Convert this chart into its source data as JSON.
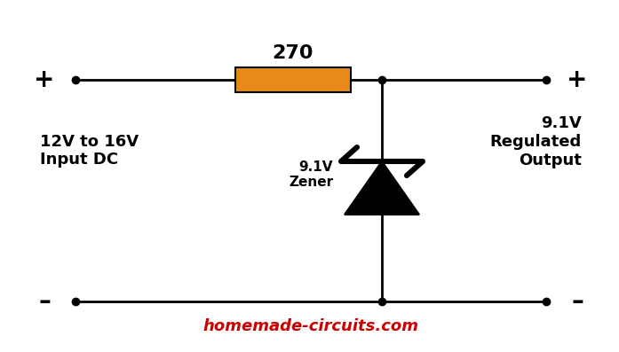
{
  "bg_color": "#ffffff",
  "line_color": "#000000",
  "resistor_color": "#E8891A",
  "resistor_label": "270",
  "resistor_label_fontsize": 16,
  "resistor_label_fontweight": "bold",
  "zener_label": "9.1V\nZener",
  "zener_label_fontsize": 11,
  "input_label": "12V to 16V\nInput DC",
  "input_label_fontsize": 13,
  "output_label": "9.1V\nRegulated\nOutput",
  "output_label_fontsize": 13,
  "watermark": "homemade-circuits.com",
  "watermark_color": "#cc0000",
  "watermark_fontsize": 13,
  "plus_fontsize": 20,
  "minus_fontsize": 20,
  "line_width": 2.0,
  "dot_size": 6
}
